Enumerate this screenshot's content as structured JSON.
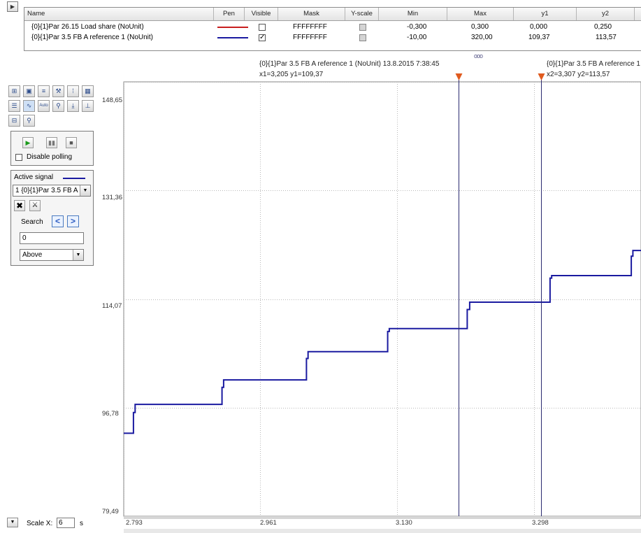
{
  "table": {
    "headers": [
      "Name",
      "Pen",
      "Visible",
      "Mask",
      "Y-scale",
      "Min",
      "Max",
      "y1",
      "y2"
    ],
    "rows": [
      {
        "name": "{0}{1}Par 26.15 Load share (NoUnit)",
        "pen_color": "#c81e1e",
        "visible": false,
        "mask": "FFFFFFFF",
        "min": "-0,300",
        "max": "0,300",
        "y1": "0,000",
        "y2": "0,250"
      },
      {
        "name": "{0}{1}Par 3.5 FB A reference 1 (NoUnit)",
        "pen_color": "#1a1aa0",
        "visible": true,
        "mask": "FFFFFFFF",
        "min": "-10,00",
        "max": "320,00",
        "y1": "109,37",
        "y2": "113,57"
      }
    ]
  },
  "toolbar": {
    "icons": [
      "add-signal-icon",
      "save-icon",
      "list-icon",
      "wrench-icon",
      "settings-grid-icon",
      "image-icon",
      "table-icon",
      "chart-icon",
      "auto-scale-icon",
      "zoom-icon",
      "export-icon",
      "axis-icon",
      "grid-view-icon",
      "zoom-reset-icon"
    ],
    "auto_label": "Auto"
  },
  "polling": {
    "disable_label": "Disable polling",
    "checked": false
  },
  "signal_panel": {
    "active_signal_label": "Active signal",
    "active_color": "#1a1aa0",
    "selected_signal": "1 {0}{1}Par 3.5 FB A",
    "search_label": "Search",
    "search_value": "0",
    "direction": "Above"
  },
  "cursors": {
    "c1_line1": "{0}{1}Par 3.5 FB A reference 1 (NoUnit) 13.8.2015 7:38:45",
    "c1_line2": "x1=3,205 y1=109,37",
    "c2_line1": "{0}{1}Par 3.5 FB A reference 1",
    "c2_line2": "x2=3,307 y2=113,57",
    "marker_color": "#e05a1e",
    "c1_x": 3.205,
    "c2_x": 3.307
  },
  "bottom": {
    "scale_x_label": "Scale X:",
    "scale_x_value": "6",
    "scale_x_unit": "s"
  },
  "chart_data": {
    "type": "line",
    "y_ticks": [
      "148,65",
      "131,36",
      "114,07",
      "96,78",
      "79,49"
    ],
    "x_ticks": [
      "2.793",
      "2.961",
      "3.130",
      "3.298"
    ],
    "ylim": [
      79.49,
      148.65
    ],
    "xlim": [
      2.793,
      3.43
    ],
    "grid": true,
    "series": [
      {
        "color": "#1a1aa0",
        "x": [
          2.793,
          2.805,
          2.805,
          2.807,
          2.807,
          2.914,
          2.914,
          2.916,
          2.916,
          3.018,
          3.018,
          3.02,
          3.02,
          3.118,
          3.118,
          3.12,
          3.12,
          3.216,
          3.216,
          3.219,
          3.219,
          3.318,
          3.318,
          3.32,
          3.32,
          3.418,
          3.418,
          3.42,
          3.42,
          3.43
        ],
        "y": [
          92.7,
          92.7,
          96.0,
          96.0,
          97.3,
          97.3,
          100.0,
          100.0,
          101.2,
          101.2,
          104.6,
          104.6,
          105.7,
          105.7,
          108.9,
          108.9,
          109.37,
          109.37,
          112.4,
          112.4,
          113.57,
          113.57,
          117.4,
          117.4,
          117.8,
          117.8,
          120.9,
          120.9,
          121.8,
          121.8
        ]
      }
    ]
  }
}
